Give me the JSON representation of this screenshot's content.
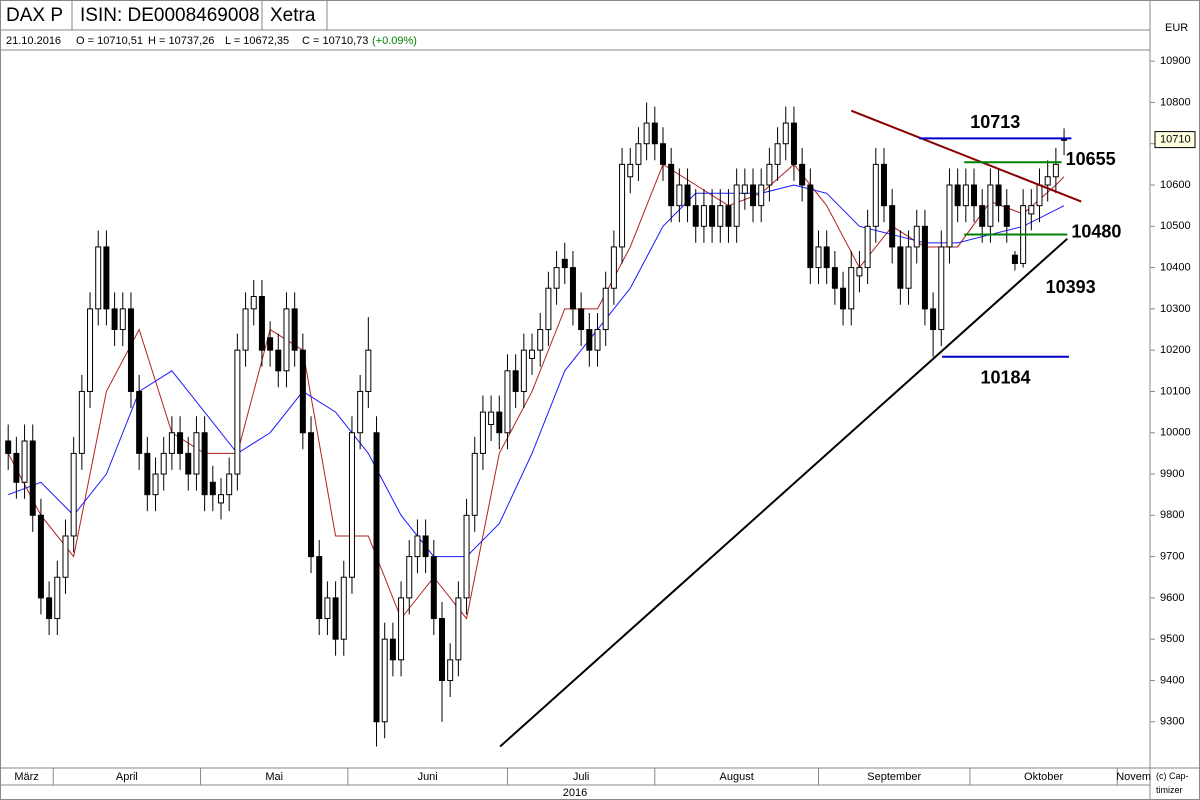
{
  "header": {
    "title": "DAX P",
    "isin": "ISIN: DE0008469008",
    "exchange": "Xetra",
    "date": "21.10.2016",
    "open": "O = 10710,51",
    "high": "H = 10737,26",
    "low": "L = 10672,35",
    "close": "C = 10710,73",
    "change": "(+0.09%)"
  },
  "chart_data": {
    "type": "candlestick",
    "currency": "EUR",
    "year": "2016",
    "copyright": "(c) Cap-timizer",
    "ylim": [
      9188,
      10927
    ],
    "yticks": [
      9300,
      9400,
      9500,
      9600,
      9700,
      9800,
      9900,
      10000,
      10100,
      10200,
      10300,
      10400,
      10500,
      10600,
      10700,
      10800,
      10900
    ],
    "xlim": [
      -1,
      139.5
    ],
    "months": [
      {
        "value": -1,
        "label": "März"
      },
      {
        "value": 5.5,
        "label": "April"
      },
      {
        "value": 23.5,
        "label": "Mai"
      },
      {
        "value": 41.5,
        "label": "Juni"
      },
      {
        "value": 61,
        "label": "Juli"
      },
      {
        "value": 79,
        "label": "August"
      },
      {
        "value": 99,
        "label": "September"
      },
      {
        "value": 117.5,
        "label": "Oktober"
      },
      {
        "value": 135.5,
        "label": "Novem"
      }
    ],
    "price_tag": 10710,
    "ohlc": [
      [
        9980,
        10020,
        9910,
        9950
      ],
      [
        9950,
        9990,
        9840,
        9880
      ],
      [
        9880,
        10020,
        9840,
        9980
      ],
      [
        9980,
        10020,
        9760,
        9800
      ],
      [
        9800,
        9840,
        9560,
        9600
      ],
      [
        9600,
        9640,
        9510,
        9550
      ],
      [
        9550,
        9690,
        9510,
        9650
      ],
      [
        9650,
        9790,
        9610,
        9750
      ],
      [
        9750,
        9990,
        9710,
        9950
      ],
      [
        9950,
        10140,
        9910,
        10100
      ],
      [
        10100,
        10340,
        10060,
        10300
      ],
      [
        10300,
        10490,
        10260,
        10450
      ],
      [
        10450,
        10490,
        10260,
        10300
      ],
      [
        10300,
        10340,
        10210,
        10250
      ],
      [
        10250,
        10340,
        10210,
        10300
      ],
      [
        10300,
        10340,
        10060,
        10100
      ],
      [
        10100,
        10140,
        9910,
        9950
      ],
      [
        9950,
        9990,
        9810,
        9850
      ],
      [
        9850,
        9940,
        9810,
        9900
      ],
      [
        9900,
        9990,
        9860,
        9950
      ],
      [
        9950,
        10040,
        9910,
        10000
      ],
      [
        10000,
        10040,
        9910,
        9950
      ],
      [
        9950,
        9990,
        9860,
        9900
      ],
      [
        9900,
        10040,
        9860,
        10000
      ],
      [
        10000,
        10040,
        9810,
        9850
      ],
      [
        9880,
        9920,
        9810,
        9850
      ],
      [
        9830,
        9890,
        9790,
        9850
      ],
      [
        9850,
        9940,
        9810,
        9900
      ],
      [
        9900,
        10240,
        9860,
        10200
      ],
      [
        10200,
        10340,
        10160,
        10300
      ],
      [
        10300,
        10370,
        10260,
        10330
      ],
      [
        10330,
        10370,
        10160,
        10200
      ],
      [
        10230,
        10270,
        10160,
        10200
      ],
      [
        10200,
        10240,
        10110,
        10150
      ],
      [
        10150,
        10340,
        10110,
        10300
      ],
      [
        10300,
        10340,
        10160,
        10200
      ],
      [
        10200,
        10240,
        9960,
        10000
      ],
      [
        10000,
        10040,
        9660,
        9700
      ],
      [
        9700,
        9740,
        9510,
        9550
      ],
      [
        9550,
        9640,
        9510,
        9600
      ],
      [
        9600,
        9640,
        9460,
        9500
      ],
      [
        9500,
        9690,
        9460,
        9650
      ],
      [
        9650,
        10040,
        9610,
        10000
      ],
      [
        10000,
        10140,
        9960,
        10100
      ],
      [
        10100,
        10280,
        10060,
        10200
      ],
      [
        10000,
        10040,
        9240,
        9300
      ],
      [
        9300,
        9540,
        9260,
        9500
      ],
      [
        9500,
        9540,
        9410,
        9450
      ],
      [
        9450,
        9640,
        9410,
        9600
      ],
      [
        9600,
        9740,
        9560,
        9700
      ],
      [
        9700,
        9790,
        9660,
        9750
      ],
      [
        9750,
        9790,
        9660,
        9700
      ],
      [
        9700,
        9740,
        9510,
        9550
      ],
      [
        9550,
        9590,
        9300,
        9400
      ],
      [
        9400,
        9490,
        9360,
        9450
      ],
      [
        9450,
        9640,
        9410,
        9600
      ],
      [
        9600,
        9840,
        9560,
        9800
      ],
      [
        9800,
        9990,
        9760,
        9950
      ],
      [
        9950,
        10090,
        9910,
        10050
      ],
      [
        10020,
        10090,
        9980,
        10050
      ],
      [
        10050,
        10090,
        9960,
        10000
      ],
      [
        10000,
        10190,
        9960,
        10150
      ],
      [
        10150,
        10190,
        10060,
        10100
      ],
      [
        10100,
        10240,
        10060,
        10200
      ],
      [
        10180,
        10240,
        10140,
        10200
      ],
      [
        10200,
        10290,
        10160,
        10250
      ],
      [
        10250,
        10390,
        10210,
        10350
      ],
      [
        10350,
        10440,
        10310,
        10400
      ],
      [
        10420,
        10460,
        10360,
        10400
      ],
      [
        10400,
        10440,
        10260,
        10300
      ],
      [
        10300,
        10340,
        10210,
        10250
      ],
      [
        10250,
        10290,
        10160,
        10200
      ],
      [
        10200,
        10290,
        10160,
        10250
      ],
      [
        10250,
        10390,
        10210,
        10350
      ],
      [
        10350,
        10490,
        10310,
        10450
      ],
      [
        10450,
        10690,
        10410,
        10650
      ],
      [
        10620,
        10690,
        10580,
        10650
      ],
      [
        10650,
        10740,
        10610,
        10700
      ],
      [
        10700,
        10800,
        10660,
        10750
      ],
      [
        10750,
        10790,
        10660,
        10700
      ],
      [
        10700,
        10740,
        10610,
        10650
      ],
      [
        10650,
        10690,
        10510,
        10550
      ],
      [
        10550,
        10640,
        10510,
        10600
      ],
      [
        10600,
        10640,
        10510,
        10550
      ],
      [
        10550,
        10590,
        10460,
        10500
      ],
      [
        10500,
        10590,
        10460,
        10550
      ],
      [
        10550,
        10590,
        10460,
        10500
      ],
      [
        10500,
        10590,
        10460,
        10550
      ],
      [
        10550,
        10590,
        10460,
        10500
      ],
      [
        10500,
        10640,
        10460,
        10600
      ],
      [
        10580,
        10640,
        10540,
        10600
      ],
      [
        10600,
        10640,
        10510,
        10550
      ],
      [
        10550,
        10640,
        10510,
        10600
      ],
      [
        10600,
        10690,
        10560,
        10650
      ],
      [
        10650,
        10740,
        10610,
        10700
      ],
      [
        10700,
        10790,
        10660,
        10750
      ],
      [
        10750,
        10790,
        10610,
        10650
      ],
      [
        10650,
        10690,
        10560,
        10600
      ],
      [
        10600,
        10640,
        10360,
        10400
      ],
      [
        10400,
        10490,
        10360,
        10450
      ],
      [
        10450,
        10490,
        10360,
        10400
      ],
      [
        10400,
        10440,
        10310,
        10350
      ],
      [
        10350,
        10390,
        10260,
        10300
      ],
      [
        10300,
        10440,
        10260,
        10400
      ],
      [
        10380,
        10440,
        10340,
        10400
      ],
      [
        10400,
        10540,
        10360,
        10500
      ],
      [
        10500,
        10690,
        10460,
        10650
      ],
      [
        10650,
        10690,
        10510,
        10550
      ],
      [
        10550,
        10590,
        10410,
        10450
      ],
      [
        10450,
        10490,
        10310,
        10350
      ],
      [
        10350,
        10490,
        10310,
        10450
      ],
      [
        10450,
        10540,
        10410,
        10500
      ],
      [
        10500,
        10540,
        10260,
        10300
      ],
      [
        10300,
        10340,
        10184,
        10250
      ],
      [
        10250,
        10490,
        10210,
        10450
      ],
      [
        10450,
        10640,
        10410,
        10600
      ],
      [
        10600,
        10640,
        10510,
        10550
      ],
      [
        10550,
        10640,
        10510,
        10600
      ],
      [
        10600,
        10640,
        10510,
        10550
      ],
      [
        10550,
        10590,
        10460,
        10500
      ],
      [
        10500,
        10640,
        10460,
        10600
      ],
      [
        10600,
        10640,
        10510,
        10550
      ],
      [
        10550,
        10590,
        10460,
        10500
      ],
      [
        10430,
        10440,
        10393,
        10410
      ],
      [
        10410,
        10590,
        10400,
        10550
      ],
      [
        10530,
        10590,
        10490,
        10550
      ],
      [
        10550,
        10640,
        10510,
        10600
      ],
      [
        10600,
        10660,
        10560,
        10620
      ],
      [
        10620,
        10690,
        10580,
        10650
      ],
      [
        10710.51,
        10737.26,
        10672.35,
        10710.73
      ]
    ],
    "series": [
      {
        "color": "#b22222",
        "x": [
          0,
          4,
          8,
          12,
          16,
          20,
          24,
          28,
          32,
          36,
          40,
          44,
          48,
          52,
          56,
          60,
          64,
          68,
          72,
          76,
          80,
          84,
          88,
          92,
          96,
          100,
          104,
          108,
          112,
          116,
          120,
          124,
          128,
          129
        ],
        "values": [
          9950,
          9800,
          9700,
          10100,
          10250,
          10000,
          9950,
          9950,
          10250,
          10200,
          9750,
          9750,
          9550,
          9650,
          9550,
          9950,
          10100,
          10300,
          10300,
          10450,
          10650,
          10600,
          10550,
          10580,
          10650,
          10550,
          10400,
          10500,
          10450,
          10450,
          10560,
          10530,
          10600,
          10620
        ]
      },
      {
        "color": "#1a1aff",
        "x": [
          0,
          4,
          8,
          12,
          16,
          20,
          24,
          28,
          32,
          36,
          40,
          44,
          48,
          52,
          56,
          60,
          64,
          68,
          72,
          76,
          80,
          84,
          88,
          92,
          96,
          100,
          104,
          108,
          112,
          116,
          120,
          124,
          128,
          129
        ],
        "values": [
          9850,
          9880,
          9800,
          9900,
          10100,
          10150,
          10050,
          9950,
          10000,
          10100,
          10050,
          9950,
          9800,
          9700,
          9700,
          9780,
          9950,
          10150,
          10250,
          10350,
          10500,
          10580,
          10580,
          10580,
          10600,
          10580,
          10500,
          10480,
          10460,
          10460,
          10480,
          10500,
          10540,
          10550
        ]
      }
    ],
    "trendlines": [
      {
        "color": "#8b0000",
        "x": [
          103,
          131.1
        ],
        "values": [
          10780,
          10560
        ]
      },
      {
        "color": "#000000",
        "x": [
          60.1,
          129.4
        ],
        "values": [
          9240,
          10470
        ]
      }
    ],
    "levels": [
      {
        "value": 10713,
        "color": "#0000cc",
        "x": [
          111.3,
          129.9
        ],
        "label_position": "above"
      },
      {
        "value": 10655,
        "color": "#008000",
        "x": [
          116.8,
          128.7
        ],
        "label_position": "right"
      },
      {
        "value": 10480,
        "color": "#008000",
        "x": [
          116.8,
          129.4
        ],
        "label_position": "right"
      },
      {
        "value": 10184,
        "color": "#0000cc",
        "x": [
          114.1,
          129.6
        ],
        "label_position": "below"
      }
    ],
    "annotations": [
      {
        "value": 10393,
        "x": 126.5
      }
    ]
  }
}
